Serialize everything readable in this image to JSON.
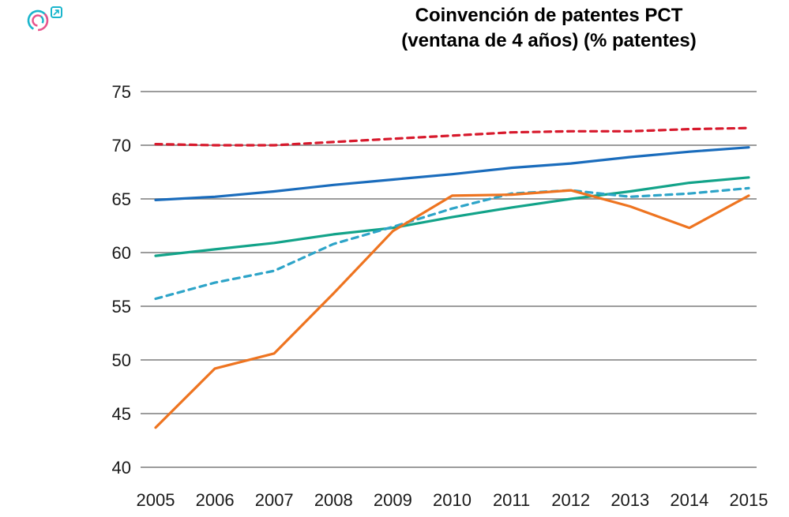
{
  "title": {
    "line1": "Coinvención de patentes PCT",
    "line2": "(ventana de 4 años) (% patentes)"
  },
  "icons": {
    "logo": "circular-brand-logo",
    "external_link": "external-link-arrow"
  },
  "colors": {
    "grid": "#9c9c9c",
    "tick_text": "#1a1a1a",
    "logo_teal": "#1ab5cc",
    "logo_pink": "#e8538c"
  },
  "chart_data": {
    "type": "line",
    "title": "Coinvención de patentes PCT (ventana de 4 años) (% patentes)",
    "x": [
      2005,
      2006,
      2007,
      2008,
      2009,
      2010,
      2011,
      2012,
      2013,
      2014,
      2015
    ],
    "xlabel": "",
    "ylabel": "",
    "ylim": [
      40,
      75
    ],
    "yticks": [
      40,
      45,
      50,
      55,
      60,
      65,
      70,
      75
    ],
    "grid": "horizontal",
    "legend": "none",
    "series": [
      {
        "name": "red-dashed",
        "color": "#d7192c",
        "dashed": true,
        "values": [
          70.1,
          70.0,
          70.0,
          70.3,
          70.6,
          70.9,
          71.2,
          71.3,
          71.3,
          71.5,
          71.6
        ]
      },
      {
        "name": "blue-solid",
        "color": "#1a6cbc",
        "dashed": false,
        "values": [
          64.9,
          65.2,
          65.7,
          66.3,
          66.8,
          67.3,
          67.9,
          68.3,
          68.9,
          69.4,
          69.8
        ]
      },
      {
        "name": "teal-solid",
        "color": "#12a389",
        "dashed": false,
        "values": [
          59.7,
          60.3,
          60.9,
          61.7,
          62.3,
          63.3,
          64.2,
          65.0,
          65.7,
          66.5,
          67.0
        ]
      },
      {
        "name": "teal-dashed",
        "color": "#2da4c8",
        "dashed": true,
        "values": [
          55.7,
          57.2,
          58.3,
          60.8,
          62.4,
          64.1,
          65.5,
          65.8,
          65.2,
          65.5,
          66.0
        ]
      },
      {
        "name": "orange-solid",
        "color": "#ee7420",
        "dashed": false,
        "values": [
          43.7,
          49.2,
          50.6,
          56.2,
          62.0,
          65.3,
          65.4,
          65.8,
          64.3,
          62.3,
          65.3
        ]
      }
    ]
  }
}
